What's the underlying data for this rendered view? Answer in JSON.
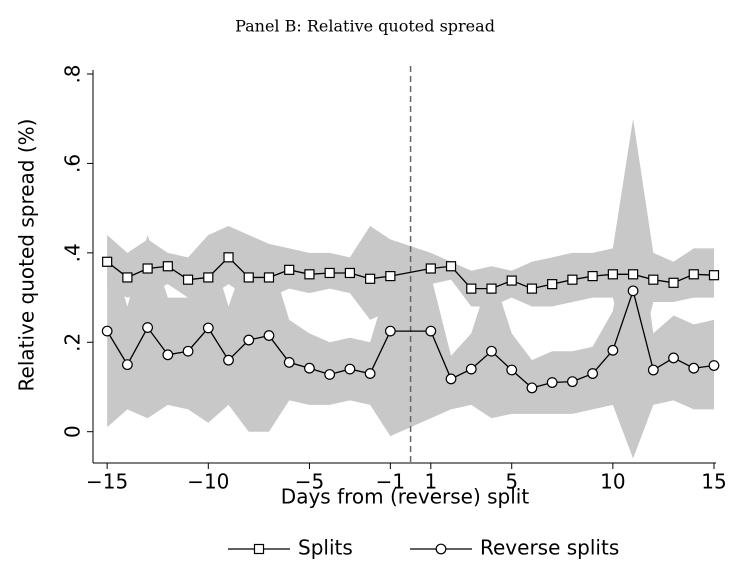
{
  "chart_data": {
    "type": "line",
    "title": "Panel B: Relative quoted spread",
    "x_label": "Days from (reverse) split",
    "y_label": "Relative quoted spread (%)",
    "x": [
      -15,
      -14,
      -13,
      -12,
      -11,
      -10,
      -9,
      -8,
      -7,
      -6,
      -5,
      -4,
      -3,
      -2,
      -1,
      1,
      2,
      3,
      4,
      5,
      6,
      7,
      8,
      9,
      10,
      11,
      12,
      13,
      14,
      15
    ],
    "series": [
      {
        "name": "Splits",
        "color": "#000000",
        "marker": "square",
        "band_color": "#c8c8c8",
        "values": [
          0.38,
          0.345,
          0.365,
          0.37,
          0.34,
          0.345,
          0.39,
          0.345,
          0.345,
          0.362,
          0.352,
          0.355,
          0.355,
          0.342,
          0.348,
          0.365,
          0.37,
          0.32,
          0.32,
          0.338,
          0.32,
          0.33,
          0.34,
          0.348,
          0.352,
          0.352,
          0.34,
          0.333,
          0.352,
          0.35
        ],
        "upper": [
          0.44,
          0.4,
          0.43,
          0.4,
          0.39,
          0.44,
          0.46,
          0.44,
          0.42,
          0.41,
          0.4,
          0.4,
          0.39,
          0.46,
          0.43,
          0.4,
          0.38,
          0.36,
          0.37,
          0.36,
          0.38,
          0.39,
          0.4,
          0.4,
          0.41,
          0.7,
          0.4,
          0.38,
          0.41,
          0.41
        ],
        "lower": [
          0.32,
          0.3,
          0.31,
          0.33,
          0.3,
          0.3,
          0.33,
          0.3,
          0.3,
          0.32,
          0.31,
          0.32,
          0.31,
          0.25,
          0.27,
          0.33,
          0.34,
          0.28,
          0.28,
          0.3,
          0.28,
          0.28,
          0.29,
          0.3,
          0.3,
          0.11,
          0.29,
          0.29,
          0.3,
          0.3
        ]
      },
      {
        "name": "Reverse splits",
        "color": "#000000",
        "marker": "circle",
        "band_color": "#c8c8c8",
        "values": [
          0.225,
          0.15,
          0.233,
          0.172,
          0.18,
          0.232,
          0.16,
          0.205,
          0.215,
          0.155,
          0.142,
          0.128,
          0.14,
          0.13,
          0.225,
          0.225,
          0.118,
          0.14,
          0.18,
          0.138,
          0.098,
          0.11,
          0.112,
          0.13,
          0.182,
          0.315,
          0.138,
          0.165,
          0.142,
          0.148
        ],
        "upper": [
          0.43,
          0.28,
          0.44,
          0.3,
          0.3,
          0.43,
          0.28,
          0.41,
          0.4,
          0.25,
          0.22,
          0.2,
          0.21,
          0.2,
          0.35,
          0.35,
          0.17,
          0.22,
          0.36,
          0.22,
          0.16,
          0.18,
          0.18,
          0.19,
          0.27,
          0.55,
          0.22,
          0.26,
          0.24,
          0.25
        ],
        "lower": [
          0.01,
          0.05,
          0.03,
          0.06,
          0.05,
          0.02,
          0.06,
          0.0,
          0.0,
          0.07,
          0.06,
          0.06,
          0.07,
          0.06,
          -0.01,
          0.03,
          0.05,
          0.06,
          0.03,
          0.04,
          0.04,
          0.04,
          0.04,
          0.05,
          0.06,
          -0.06,
          0.06,
          0.07,
          0.05,
          0.05
        ]
      }
    ],
    "xlim": [
      -15.7,
      15
    ],
    "xticks": [
      {
        "value": -15,
        "label": "−15"
      },
      {
        "value": -10,
        "label": "−10"
      },
      {
        "value": -5,
        "label": "−5"
      },
      {
        "value": -1,
        "label": "−1"
      },
      1,
      5,
      10,
      15
    ],
    "ylim": [
      -0.07,
      0.8
    ],
    "yticks": [
      0,
      {
        "value": 0.2,
        "label": ".2"
      },
      {
        "value": 0.4,
        "label": ".4"
      },
      {
        "value": 0.6,
        "label": ".6"
      },
      {
        "value": 0.8,
        "label": ".8"
      }
    ],
    "vline": 0,
    "grid": false,
    "legend": "bottom"
  }
}
